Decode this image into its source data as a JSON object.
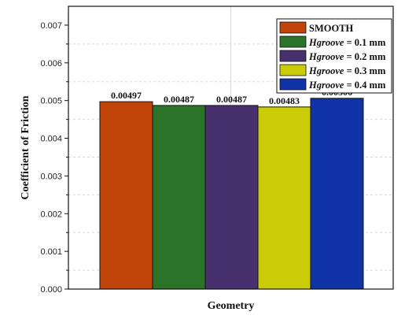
{
  "chart_data": {
    "type": "bar",
    "xlabel": "Geometry",
    "ylabel": "Coefficient of Friction",
    "ylim": [
      0,
      0.0075
    ],
    "yticks": [
      "0.000",
      "0.001",
      "0.002",
      "0.003",
      "0.004",
      "0.005",
      "0.006",
      "0.007"
    ],
    "grid": true,
    "legend_position": "top-right",
    "series": [
      {
        "name": "SMOOTH",
        "value": 0.00497,
        "label": "0.00497",
        "color": "#c0440a"
      },
      {
        "name": "Hgroove = 0.1 mm",
        "var": "Hgroove",
        "rest": " = 0.1 mm",
        "value": 0.00487,
        "label": "0.00487",
        "color": "#2a7328"
      },
      {
        "name": "Hgroove = 0.2 mm",
        "var": "Hgroove",
        "rest": " = 0.2 mm",
        "value": 0.00487,
        "label": "0.00487",
        "color": "#47306e"
      },
      {
        "name": "Hgroove = 0.3 mm",
        "var": "Hgroove",
        "rest": " = 0.3 mm",
        "value": 0.00483,
        "label": "0.00483",
        "color": "#c9cc06"
      },
      {
        "name": "Hgroove = 0.4 mm",
        "var": "Hgroove",
        "rest": " = 0.4 mm",
        "value": 0.00506,
        "label": "0.00506",
        "color": "#1033a8"
      }
    ]
  }
}
